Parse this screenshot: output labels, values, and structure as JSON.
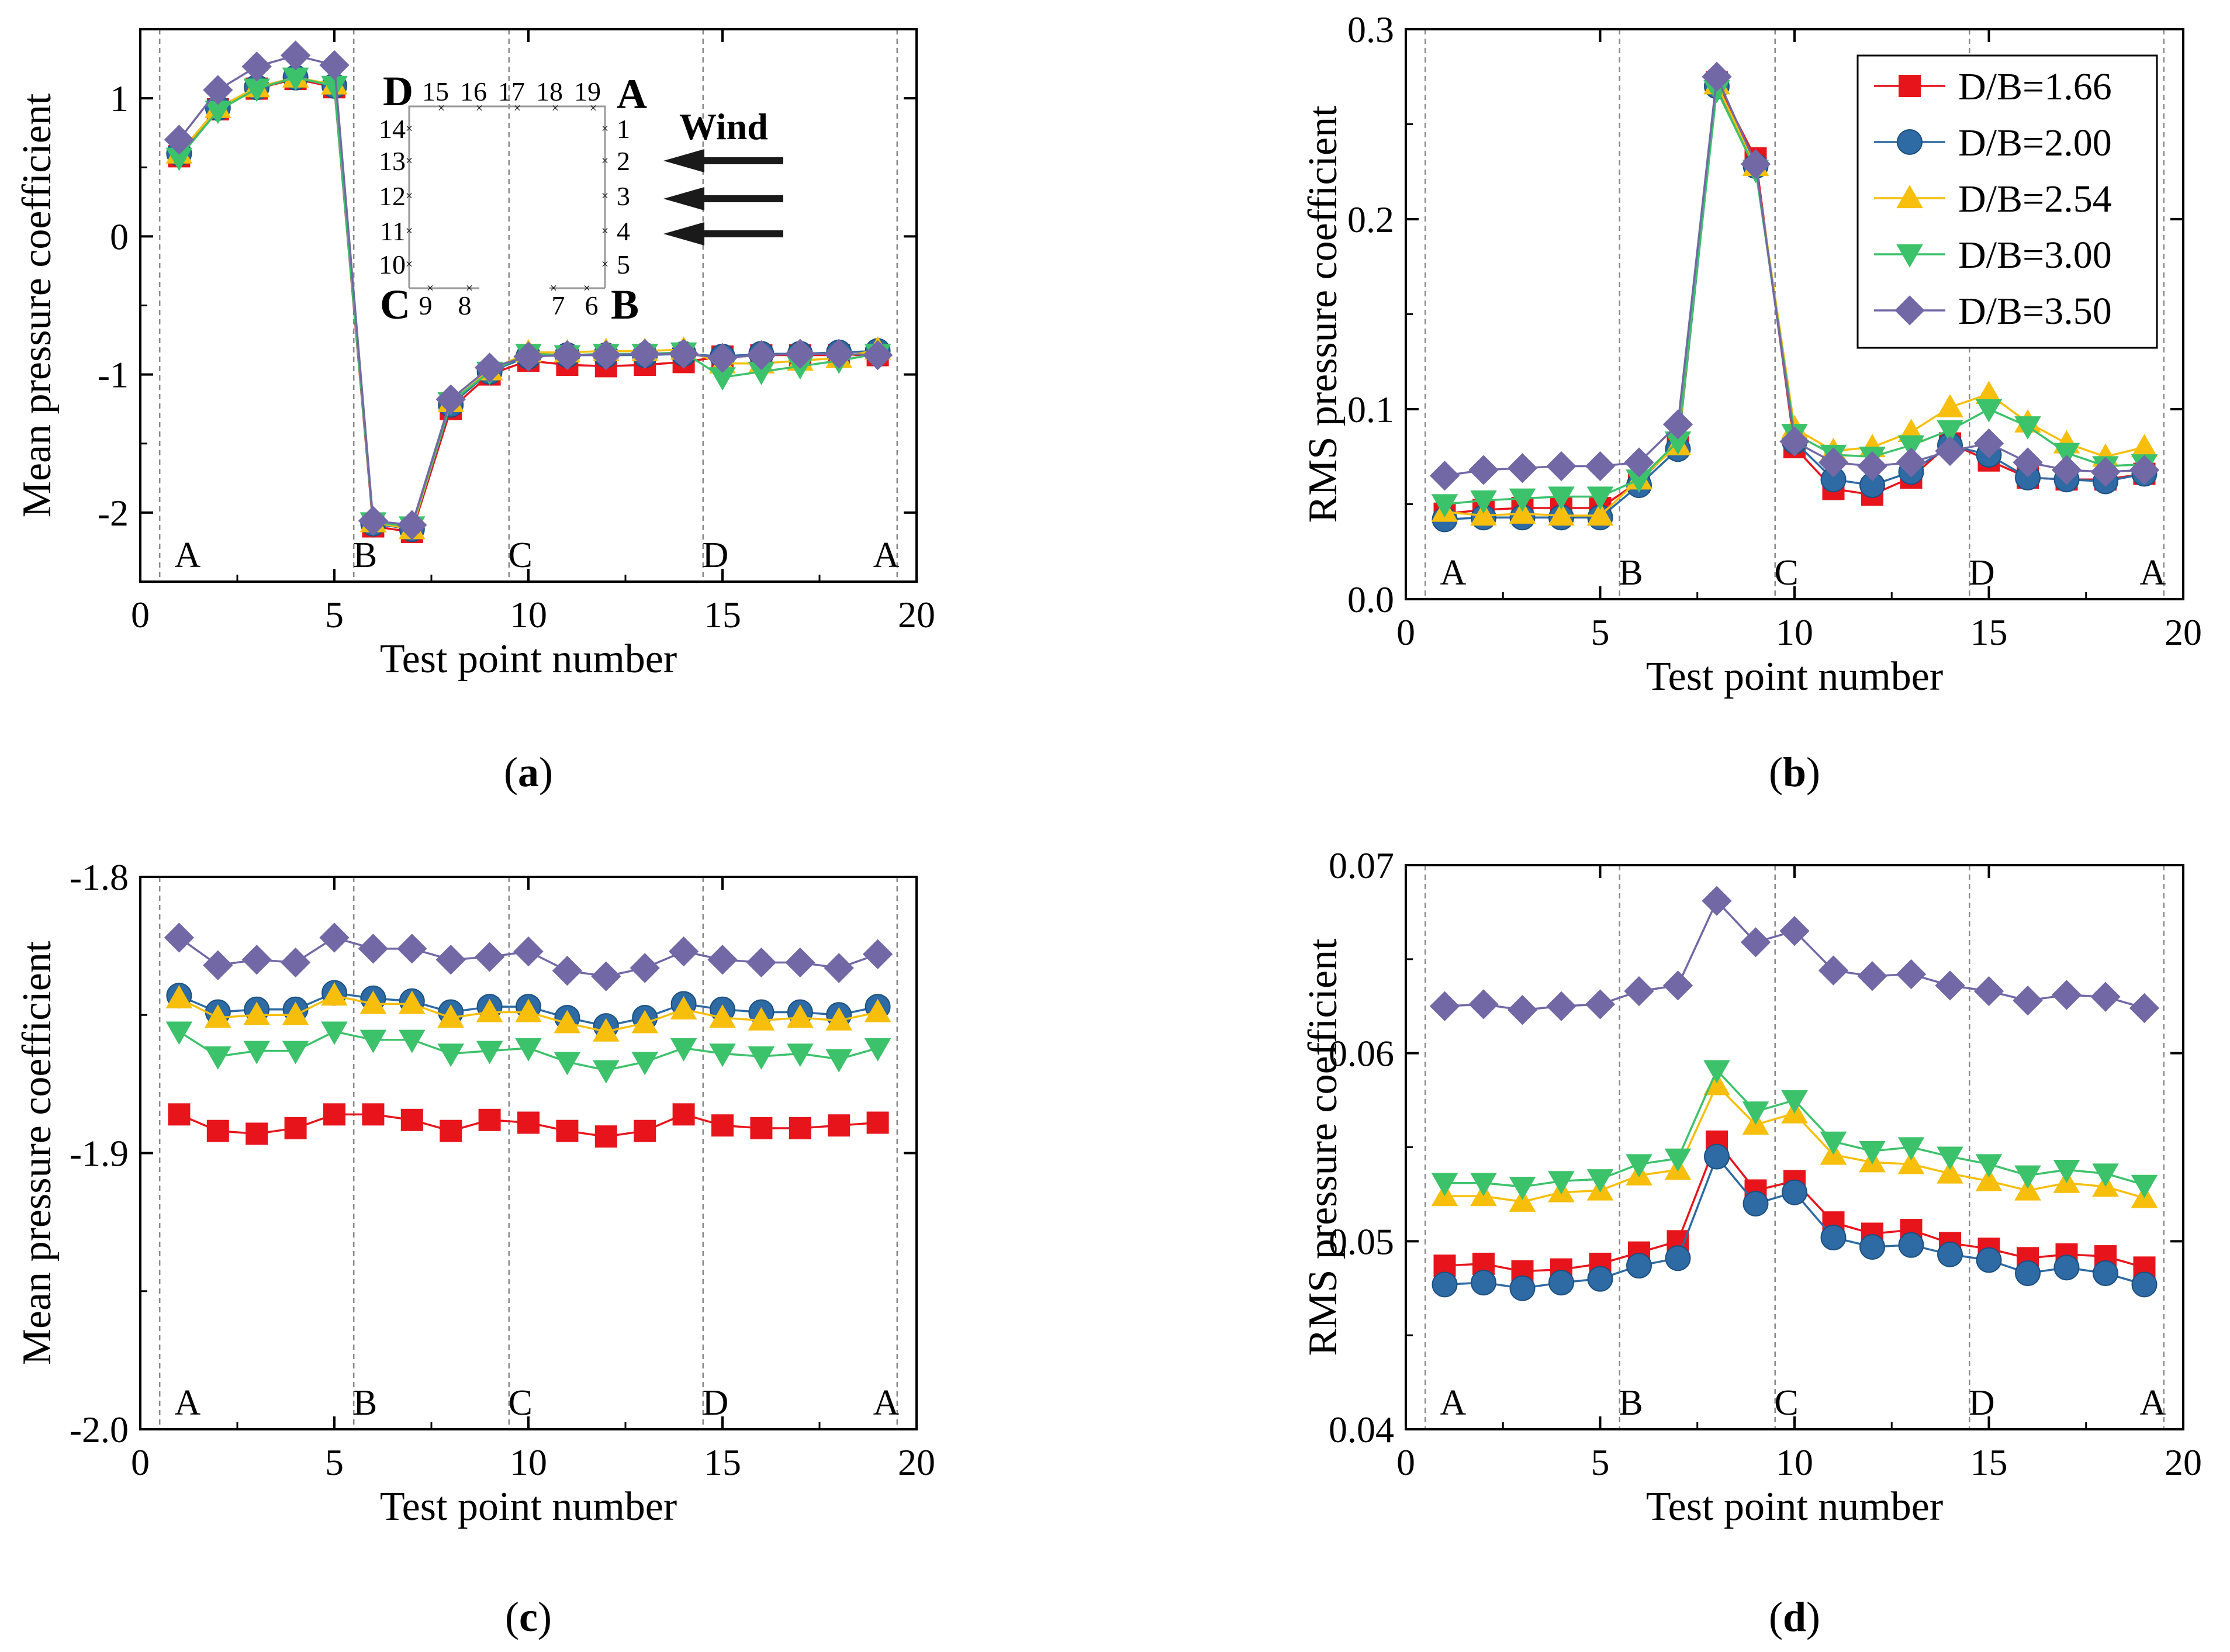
{
  "figure": {
    "series_names": [
      "D/B=1.66",
      "D/B=2.00",
      "D/B=2.54",
      "D/B=3.00",
      "D/B=3.50"
    ],
    "series_colors": [
      "#e8141b",
      "#2e6aa3",
      "#f7bf0b",
      "#3cc26b",
      "#7268a6"
    ],
    "series_markers": [
      "square",
      "circle",
      "triangle-up",
      "triangle-down",
      "diamond"
    ],
    "separator_x": [
      0.5,
      5.5,
      9.5,
      14.5,
      19.5
    ],
    "edge_letters": [
      {
        "text": "A",
        "x": 1
      },
      {
        "text": "B",
        "x": 5.6
      },
      {
        "text": "C",
        "x": 9.6
      },
      {
        "text": "D",
        "x": 14.6
      },
      {
        "text": "A",
        "x": 19
      }
    ],
    "inset": {
      "corners": {
        "A": "A",
        "B": "B",
        "C": "C",
        "D": "D"
      },
      "wind_label": "Wind",
      "top_numbers": [
        "15",
        "16",
        "17",
        "18",
        "19"
      ],
      "right_numbers": [
        "1",
        "2",
        "3",
        "4",
        "5"
      ],
      "left_numbers": [
        "14",
        "13",
        "12",
        "11",
        "10"
      ],
      "bottom_left_numbers": [
        "9",
        "8"
      ],
      "bottom_right_numbers": [
        "7",
        "6"
      ]
    }
  },
  "chart_data": [
    {
      "type": "line",
      "panel_label": "(a)",
      "panel_letter": "a",
      "xlabel": "Test point number",
      "ylabel": "Mean pressure coefficient",
      "xlim": [
        0,
        20
      ],
      "ylim": [
        -2.5,
        1.5
      ],
      "xticks": [
        0,
        5,
        10,
        15,
        20
      ],
      "yticks": [
        -2,
        -1,
        0,
        1
      ],
      "ytick_labels": [
        "-2",
        "-1",
        "0",
        "1"
      ],
      "legend": false,
      "x": [
        1,
        2,
        3,
        4,
        5,
        6,
        7,
        8,
        9,
        10,
        11,
        12,
        13,
        14,
        15,
        16,
        17,
        18,
        19
      ],
      "series": [
        {
          "name": "D/B=1.66",
          "values": [
            0.58,
            0.92,
            1.07,
            1.14,
            1.08,
            -2.1,
            -2.14,
            -1.25,
            -1.0,
            -0.9,
            -0.93,
            -0.94,
            -0.93,
            -0.91,
            -0.87,
            -0.86,
            -0.86,
            -0.86,
            -0.86
          ]
        },
        {
          "name": "D/B=2.00",
          "values": [
            0.6,
            0.93,
            1.08,
            1.15,
            1.09,
            -2.08,
            -2.12,
            -1.22,
            -0.98,
            -0.87,
            -0.86,
            -0.86,
            -0.86,
            -0.85,
            -0.87,
            -0.85,
            -0.85,
            -0.84,
            -0.83
          ]
        },
        {
          "name": "D/B=2.54",
          "values": [
            0.6,
            0.93,
            1.08,
            1.15,
            1.1,
            -2.07,
            -2.12,
            -1.2,
            -0.97,
            -0.84,
            -0.84,
            -0.83,
            -0.83,
            -0.82,
            -0.92,
            -0.92,
            -0.9,
            -0.88,
            -0.82
          ]
        },
        {
          "name": "D/B=3.00",
          "values": [
            0.57,
            0.91,
            1.07,
            1.15,
            1.09,
            -2.07,
            -2.1,
            -1.2,
            -0.98,
            -0.85,
            -0.86,
            -0.85,
            -0.85,
            -0.84,
            -1.02,
            -0.98,
            -0.94,
            -0.9,
            -0.85
          ]
        },
        {
          "name": "D/B=3.50",
          "values": [
            0.7,
            1.06,
            1.23,
            1.31,
            1.24,
            -2.06,
            -2.09,
            -1.18,
            -0.95,
            -0.87,
            -0.86,
            -0.86,
            -0.85,
            -0.85,
            -0.88,
            -0.86,
            -0.85,
            -0.85,
            -0.86
          ]
        }
      ]
    },
    {
      "type": "line",
      "panel_label": "(b)",
      "panel_letter": "b",
      "xlabel": "Test point number",
      "ylabel": "RMS pressure coefficient",
      "xlim": [
        0,
        20
      ],
      "ylim": [
        0,
        0.3
      ],
      "xticks": [
        0,
        5,
        10,
        15,
        20
      ],
      "yticks": [
        0,
        0.1,
        0.2,
        0.3
      ],
      "ytick_labels": [
        "0.0",
        "0.1",
        "0.2",
        "0.3"
      ],
      "legend": true,
      "legend_position": "top-right",
      "x": [
        1,
        2,
        3,
        4,
        5,
        6,
        7,
        8,
        9,
        10,
        11,
        12,
        13,
        14,
        15,
        16,
        17,
        18,
        19
      ],
      "series": [
        {
          "name": "D/B=1.66",
          "values": [
            0.045,
            0.047,
            0.048,
            0.048,
            0.048,
            0.062,
            0.082,
            0.272,
            0.232,
            0.08,
            0.058,
            0.055,
            0.064,
            0.082,
            0.073,
            0.064,
            0.063,
            0.063,
            0.066
          ]
        },
        {
          "name": "D/B=2.00",
          "values": [
            0.042,
            0.043,
            0.043,
            0.043,
            0.043,
            0.06,
            0.079,
            0.27,
            0.228,
            0.083,
            0.063,
            0.06,
            0.067,
            0.081,
            0.076,
            0.064,
            0.063,
            0.062,
            0.066
          ]
        },
        {
          "name": "D/B=2.54",
          "values": [
            0.046,
            0.044,
            0.045,
            0.044,
            0.044,
            0.063,
            0.081,
            0.271,
            0.228,
            0.09,
            0.078,
            0.08,
            0.088,
            0.101,
            0.108,
            0.093,
            0.082,
            0.075,
            0.08
          ]
        },
        {
          "name": "D/B=3.00",
          "values": [
            0.05,
            0.052,
            0.053,
            0.054,
            0.054,
            0.063,
            0.083,
            0.268,
            0.226,
            0.087,
            0.076,
            0.075,
            0.081,
            0.089,
            0.1,
            0.091,
            0.077,
            0.07,
            0.071
          ]
        },
        {
          "name": "D/B=3.50",
          "values": [
            0.065,
            0.068,
            0.069,
            0.07,
            0.07,
            0.072,
            0.092,
            0.275,
            0.229,
            0.083,
            0.072,
            0.07,
            0.072,
            0.078,
            0.082,
            0.072,
            0.068,
            0.067,
            0.068
          ]
        }
      ]
    },
    {
      "type": "line",
      "panel_label": "(c)",
      "panel_letter": "c",
      "xlabel": "Test point number",
      "ylabel": "Mean pressure coefficient",
      "xlim": [
        0,
        20
      ],
      "ylim": [
        -2.0,
        -1.8
      ],
      "xticks": [
        0,
        5,
        10,
        15,
        20
      ],
      "yticks": [
        -2.0,
        -1.9,
        -1.8
      ],
      "ytick_labels": [
        "-2.0",
        "-1.9",
        "-1.8"
      ],
      "legend": false,
      "x": [
        1,
        2,
        3,
        4,
        5,
        6,
        7,
        8,
        9,
        10,
        11,
        12,
        13,
        14,
        15,
        16,
        17,
        18,
        19
      ],
      "series": [
        {
          "name": "D/B=1.66",
          "values": [
            -1.886,
            -1.892,
            -1.893,
            -1.891,
            -1.886,
            -1.886,
            -1.888,
            -1.892,
            -1.888,
            -1.889,
            -1.892,
            -1.894,
            -1.892,
            -1.886,
            -1.89,
            -1.891,
            -1.891,
            -1.89,
            -1.889
          ]
        },
        {
          "name": "D/B=2.00",
          "values": [
            -1.843,
            -1.849,
            -1.848,
            -1.848,
            -1.842,
            -1.844,
            -1.845,
            -1.849,
            -1.847,
            -1.847,
            -1.851,
            -1.854,
            -1.851,
            -1.846,
            -1.848,
            -1.849,
            -1.849,
            -1.85,
            -1.847
          ]
        },
        {
          "name": "D/B=2.54",
          "values": [
            -1.844,
            -1.851,
            -1.85,
            -1.85,
            -1.843,
            -1.846,
            -1.846,
            -1.851,
            -1.849,
            -1.849,
            -1.853,
            -1.856,
            -1.853,
            -1.848,
            -1.851,
            -1.852,
            -1.851,
            -1.852,
            -1.849
          ]
        },
        {
          "name": "D/B=3.00",
          "values": [
            -1.856,
            -1.865,
            -1.863,
            -1.863,
            -1.856,
            -1.859,
            -1.859,
            -1.864,
            -1.863,
            -1.862,
            -1.867,
            -1.87,
            -1.867,
            -1.862,
            -1.864,
            -1.865,
            -1.864,
            -1.866,
            -1.862
          ]
        },
        {
          "name": "D/B=3.50",
          "values": [
            -1.822,
            -1.832,
            -1.83,
            -1.831,
            -1.822,
            -1.826,
            -1.826,
            -1.83,
            -1.829,
            -1.827,
            -1.834,
            -1.836,
            -1.833,
            -1.827,
            -1.83,
            -1.831,
            -1.831,
            -1.833,
            -1.828
          ]
        }
      ]
    },
    {
      "type": "line",
      "panel_label": "(d)",
      "panel_letter": "d",
      "xlabel": "Test point number",
      "ylabel": "RMS pressure coefficient",
      "xlim": [
        0,
        20
      ],
      "ylim": [
        0.04,
        0.07
      ],
      "xticks": [
        0,
        5,
        10,
        15,
        20
      ],
      "yticks": [
        0.04,
        0.05,
        0.06,
        0.07
      ],
      "ytick_labels": [
        "0.04",
        "0.05",
        "0.06",
        "0.07"
      ],
      "legend": false,
      "x": [
        1,
        2,
        3,
        4,
        5,
        6,
        7,
        8,
        9,
        10,
        11,
        12,
        13,
        14,
        15,
        16,
        17,
        18,
        19
      ],
      "series": [
        {
          "name": "D/B=1.66",
          "values": [
            0.0487,
            0.0488,
            0.0484,
            0.0485,
            0.0488,
            0.0494,
            0.05,
            0.0553,
            0.0527,
            0.0532,
            0.051,
            0.0504,
            0.0506,
            0.0499,
            0.0496,
            0.0491,
            0.0493,
            0.0492,
            0.0486
          ]
        },
        {
          "name": "D/B=2.00",
          "values": [
            0.0477,
            0.0478,
            0.0475,
            0.0478,
            0.048,
            0.0487,
            0.0491,
            0.0545,
            0.052,
            0.0526,
            0.0502,
            0.0497,
            0.0498,
            0.0493,
            0.049,
            0.0483,
            0.0486,
            0.0483,
            0.0477
          ]
        },
        {
          "name": "D/B=2.54",
          "values": [
            0.0524,
            0.0524,
            0.0521,
            0.0526,
            0.0527,
            0.0535,
            0.0538,
            0.0583,
            0.0562,
            0.0568,
            0.0546,
            0.0542,
            0.0541,
            0.0536,
            0.0532,
            0.0527,
            0.0531,
            0.0529,
            0.0523
          ]
        },
        {
          "name": "D/B=3.00",
          "values": [
            0.0531,
            0.0531,
            0.0529,
            0.0532,
            0.0533,
            0.0541,
            0.0544,
            0.0591,
            0.0569,
            0.0575,
            0.0553,
            0.0548,
            0.055,
            0.0545,
            0.0541,
            0.0535,
            0.0538,
            0.0536,
            0.053
          ]
        },
        {
          "name": "D/B=3.50",
          "values": [
            0.0625,
            0.0626,
            0.0623,
            0.0625,
            0.0626,
            0.0633,
            0.0636,
            0.0681,
            0.0659,
            0.0665,
            0.0644,
            0.0641,
            0.0642,
            0.0636,
            0.0633,
            0.0628,
            0.0631,
            0.063,
            0.0624
          ]
        }
      ]
    }
  ]
}
